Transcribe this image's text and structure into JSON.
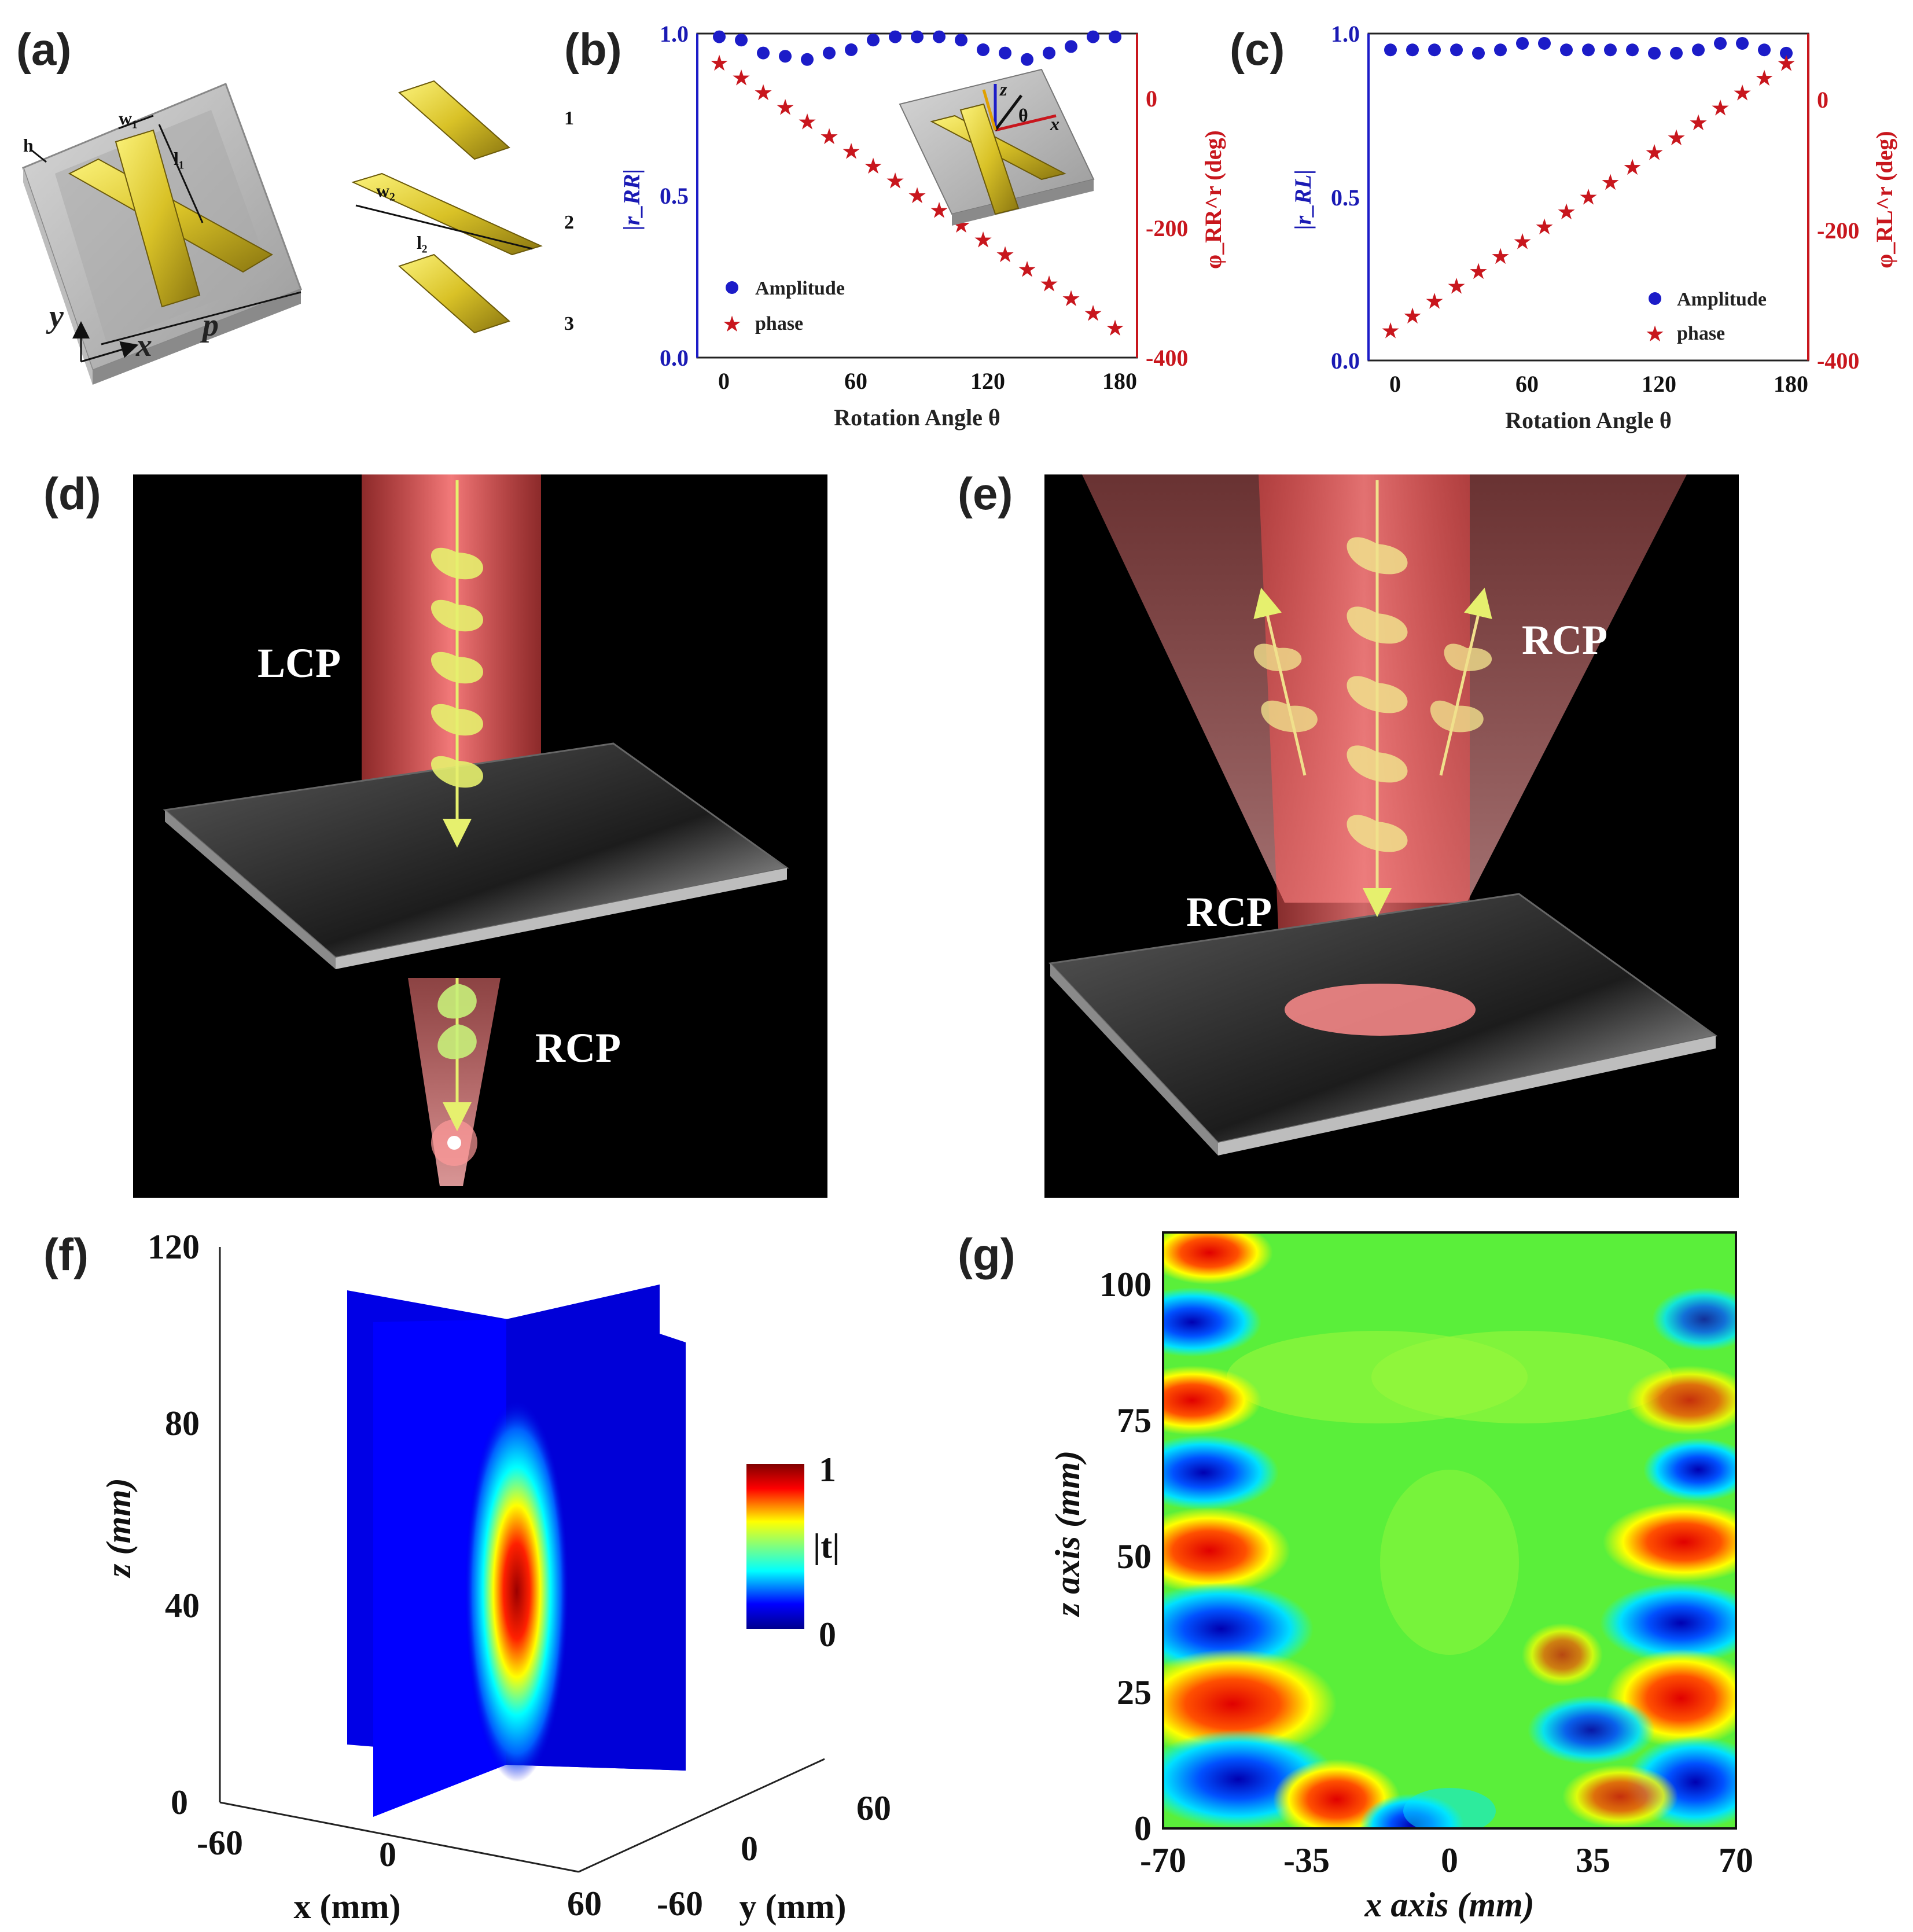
{
  "panel_labels": {
    "a": "(a)",
    "b": "(b)",
    "c": "(c)",
    "d": "(d)",
    "e": "(e)",
    "f": "(f)",
    "g": "(g)"
  },
  "panel_a": {
    "labels": {
      "h": "h",
      "w1": "w₁",
      "l1": "l₁",
      "w2": "w₂",
      "l2": "l₂",
      "p": "p",
      "y": "y",
      "x": "x"
    },
    "part_numbers": [
      "1",
      "2",
      "3"
    ]
  },
  "chart_data": [
    {
      "id": "b",
      "type": "scatter",
      "xlabel": "Rotation Angle θ",
      "ylabel_left": "|r_RR|",
      "ylabel_right": "φ_RR^r (deg)",
      "xlim": [
        -10,
        190
      ],
      "ylim_left": [
        0,
        1
      ],
      "ylim_right": [
        -400,
        40
      ],
      "xticks": [
        "0",
        "60",
        "120",
        "180"
      ],
      "yticks_left": [
        "0.0",
        "0.5",
        "1.0"
      ],
      "yticks_right": [
        "0",
        "-200",
        "-400"
      ],
      "legend": [
        "Amplitude",
        "phase"
      ],
      "legend_position": "bottom-left",
      "series": [
        {
          "name": "Amplitude",
          "axis": "left",
          "color": "#1c1cc8",
          "x": [
            0,
            10,
            20,
            30,
            40,
            50,
            60,
            70,
            80,
            90,
            100,
            110,
            120,
            130,
            140,
            150,
            160,
            170,
            180
          ],
          "y": [
            0.99,
            0.98,
            0.94,
            0.93,
            0.92,
            0.94,
            0.95,
            0.98,
            0.99,
            0.99,
            0.99,
            0.98,
            0.95,
            0.94,
            0.92,
            0.94,
            0.96,
            0.99,
            0.99
          ]
        },
        {
          "name": "phase",
          "axis": "right",
          "color": "#c8161d",
          "x": [
            0,
            10,
            20,
            30,
            40,
            50,
            60,
            70,
            80,
            90,
            100,
            110,
            120,
            130,
            140,
            150,
            160,
            170,
            180
          ],
          "y": [
            0,
            -20,
            -40,
            -60,
            -80,
            -100,
            -120,
            -140,
            -160,
            -180,
            -200,
            -220,
            -240,
            -260,
            -280,
            -300,
            -320,
            -340,
            -360
          ]
        }
      ],
      "inset_labels": {
        "z": "z",
        "x": "x",
        "theta": "θ"
      }
    },
    {
      "id": "c",
      "type": "scatter",
      "xlabel": "Rotation Angle θ",
      "ylabel_left": "|r_RL|",
      "ylabel_right": "φ_RL^r (deg)",
      "xlim": [
        -10,
        190
      ],
      "ylim_left": [
        0,
        1
      ],
      "ylim_right": [
        -400,
        40
      ],
      "xticks": [
        "0",
        "60",
        "120",
        "180"
      ],
      "yticks_left": [
        "0.0",
        "0.5",
        "1.0"
      ],
      "yticks_right": [
        "0",
        "-200",
        "-400"
      ],
      "legend": [
        "Amplitude",
        "phase"
      ],
      "legend_position": "bottom-right",
      "series": [
        {
          "name": "Amplitude",
          "axis": "left",
          "color": "#1c1cc8",
          "x": [
            0,
            10,
            20,
            30,
            40,
            50,
            60,
            70,
            80,
            90,
            100,
            110,
            120,
            130,
            140,
            150,
            160,
            170,
            180
          ],
          "y": [
            0.95,
            0.95,
            0.95,
            0.95,
            0.94,
            0.95,
            0.97,
            0.97,
            0.95,
            0.95,
            0.95,
            0.95,
            0.94,
            0.94,
            0.95,
            0.97,
            0.97,
            0.95,
            0.94
          ]
        },
        {
          "name": "phase",
          "axis": "right",
          "color": "#c8161d",
          "x": [
            0,
            10,
            20,
            30,
            40,
            50,
            60,
            70,
            80,
            90,
            100,
            110,
            120,
            130,
            140,
            150,
            160,
            170,
            180
          ],
          "y": [
            -360,
            -340,
            -320,
            -300,
            -280,
            -260,
            -240,
            -220,
            -200,
            -180,
            -160,
            -140,
            -120,
            -100,
            -80,
            -60,
            -40,
            -20,
            0
          ]
        }
      ]
    },
    {
      "id": "f",
      "type": "heatmap",
      "xlabel": "x (mm)",
      "ylabel": "y (mm)",
      "zlabel": "z (mm)",
      "xticks": [
        "-60",
        "0",
        "60"
      ],
      "yticks": [
        "-60",
        "0",
        "60"
      ],
      "zticks": [
        "0",
        "40",
        "80",
        "120"
      ],
      "colorbar": {
        "label": "|t|",
        "min": "0",
        "max": "1"
      },
      "focus": {
        "x": 0,
        "y": 0,
        "z": 40
      }
    },
    {
      "id": "g",
      "type": "heatmap",
      "xlabel": "x axis (mm)",
      "ylabel": "z axis (mm)",
      "xlim": [
        -70,
        70
      ],
      "ylim": [
        0,
        110
      ],
      "xticks": [
        "-70",
        "-35",
        "0",
        "35",
        "70"
      ],
      "yticks": [
        "0",
        "25",
        "50",
        "75",
        "100"
      ]
    }
  ],
  "panel_d": {
    "incident": "LCP",
    "transmitted": "RCP"
  },
  "panel_e": {
    "incident": "RCP",
    "reflected": "RCP"
  },
  "colors": {
    "amplitude": "#1c1cc8",
    "phase": "#c8161d",
    "beam": "#ff5a5a",
    "wave": "#e6f06e"
  }
}
